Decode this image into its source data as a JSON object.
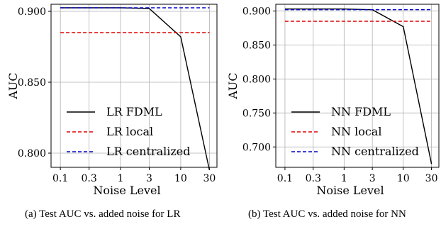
{
  "chart_data": [
    {
      "type": "line",
      "xscale": "log",
      "x": [
        0.1,
        0.3,
        1,
        3,
        10,
        30
      ],
      "x_tick_labels": [
        "0.1",
        "0.3",
        "1",
        "3",
        "10",
        "30"
      ],
      "y_ticks": [
        0.8,
        0.85,
        0.9
      ],
      "y_tick_labels": [
        "0.800",
        "0.850",
        "0.900"
      ],
      "ylim": [
        0.79,
        0.905
      ],
      "xlabel": "Noise Level",
      "ylabel": "AUC",
      "grid": true,
      "legend_position": "lower-left",
      "series": [
        {
          "name": "LR FDML",
          "color": "#000000",
          "dash": "solid",
          "values": [
            0.9025,
            0.9025,
            0.9025,
            0.902,
            0.882,
            0.788
          ]
        },
        {
          "name": "LR local",
          "color": "#e00000",
          "dash": "dashed",
          "values": [
            0.885,
            0.885,
            0.885,
            0.885,
            0.885,
            0.885
          ]
        },
        {
          "name": "LR centralized",
          "color": "#0000cc",
          "dash": "dashed",
          "values": [
            0.9025,
            0.9025,
            0.9025,
            0.9025,
            0.9025,
            0.9025
          ]
        }
      ],
      "caption": "(a)  Test AUC vs. added noise for LR"
    },
    {
      "type": "line",
      "xscale": "log",
      "x": [
        0.1,
        0.3,
        1,
        3,
        10,
        30
      ],
      "x_tick_labels": [
        "0.1",
        "0.3",
        "1",
        "3",
        "10",
        "30"
      ],
      "y_ticks": [
        0.7,
        0.75,
        0.8,
        0.85,
        0.9
      ],
      "y_tick_labels": [
        "0.700",
        "0.750",
        "0.800",
        "0.850",
        "0.900"
      ],
      "ylim": [
        0.67,
        0.91
      ],
      "xlabel": "Noise Level",
      "ylabel": "AUC",
      "grid": true,
      "legend_position": "lower-left",
      "series": [
        {
          "name": "NN FDML",
          "color": "#000000",
          "dash": "solid",
          "values": [
            0.903,
            0.903,
            0.903,
            0.902,
            0.877,
            0.675
          ]
        },
        {
          "name": "NN local",
          "color": "#e00000",
          "dash": "dashed",
          "values": [
            0.885,
            0.885,
            0.885,
            0.885,
            0.885,
            0.885
          ]
        },
        {
          "name": "NN centralized",
          "color": "#0000cc",
          "dash": "dashed",
          "values": [
            0.902,
            0.902,
            0.902,
            0.902,
            0.902,
            0.902
          ]
        }
      ],
      "caption": "(b)  Test AUC vs. added noise for NN"
    }
  ]
}
